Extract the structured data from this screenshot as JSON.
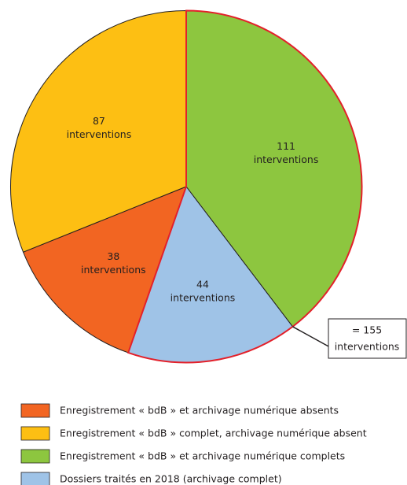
{
  "chart_data": {
    "type": "pie",
    "categories": [
      "Enregistrement « bdB » et archivage numérique absents",
      "Enregistrement « bdB » complet, archivage numérique absent",
      "Enregistrement « bdB » et archivage numérique complets",
      "Dossiers traités en 2018 (archivage complet)"
    ],
    "values": [
      38,
      87,
      111,
      44
    ],
    "value_labels": [
      "38 interventions",
      "87 interventions",
      "111 interventions",
      "44 interventions"
    ],
    "colors": [
      "#f26522",
      "#fdbf13",
      "#8dc63f",
      "#9fc3e7"
    ],
    "annotation": {
      "lines": [
        "= 155",
        "interventions"
      ],
      "color": "#e3202a"
    }
  }
}
